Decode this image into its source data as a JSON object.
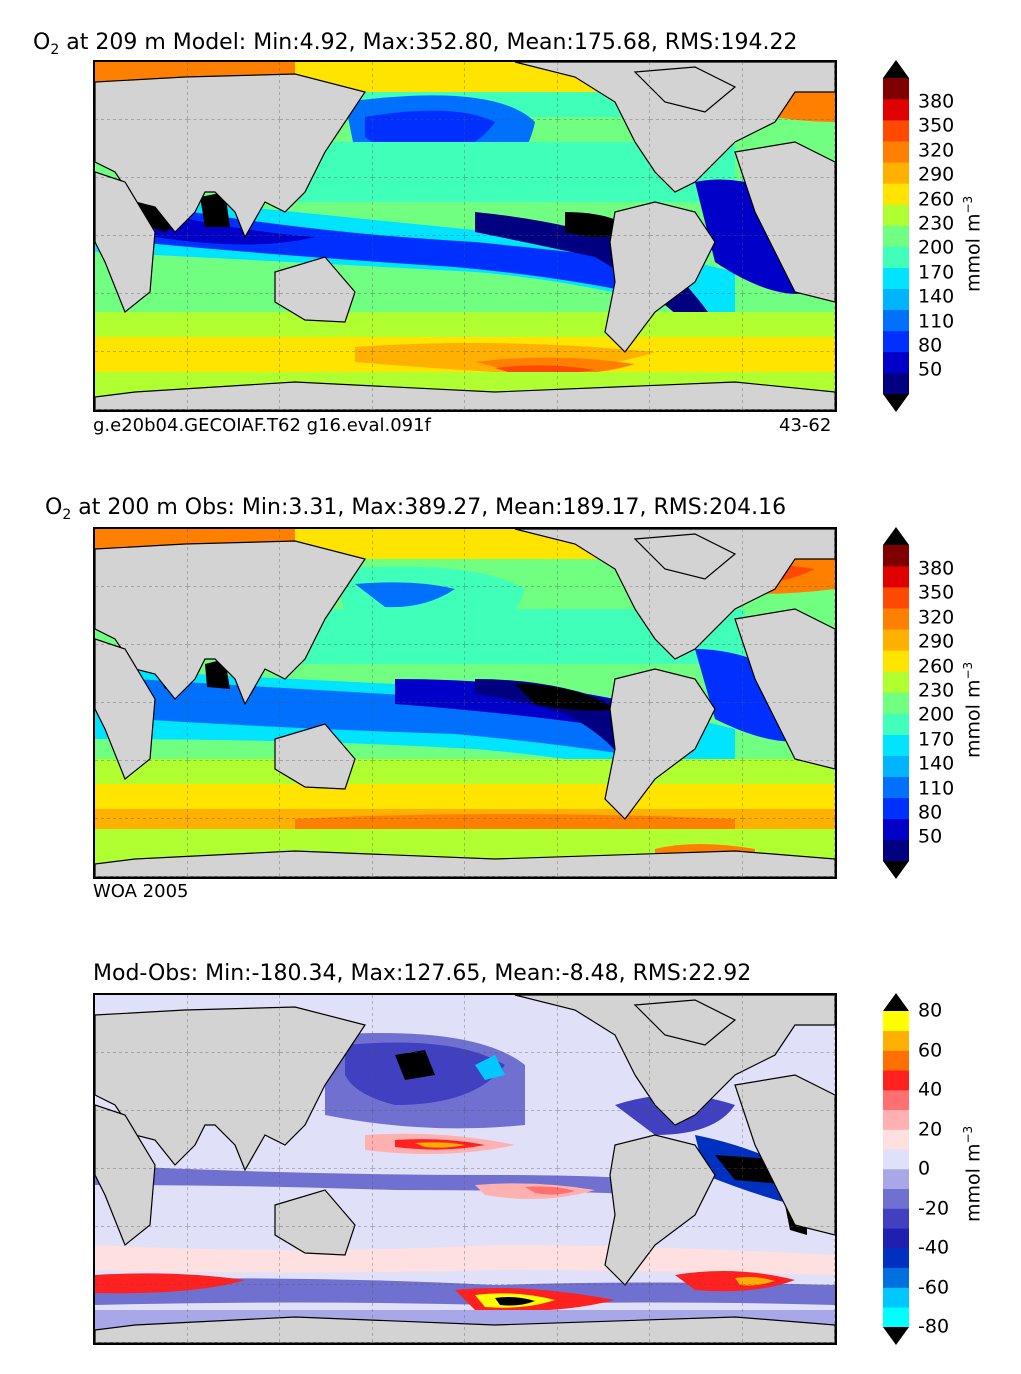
{
  "colors": {
    "land": "#d3d3d3",
    "absolute_scale": [
      "#000080",
      "#0000c8",
      "#0030ff",
      "#0070ff",
      "#00b4ff",
      "#00e4ff",
      "#40ffb8",
      "#70ff80",
      "#b0ff30",
      "#ffe400",
      "#ffb000",
      "#ff8000",
      "#ff4800",
      "#e00000",
      "#800000"
    ],
    "difference_scale": [
      "#00ffff",
      "#00c8ff",
      "#0070e0",
      "#0030c0",
      "#2020b0",
      "#4040c0",
      "#7070d0",
      "#a8a8e8",
      "#e0e0f8",
      "#ffe0e0",
      "#ffb0b0",
      "#ff7070",
      "#ff2020",
      "#ff7000",
      "#ffb000",
      "#ffff00"
    ]
  },
  "panels": [
    {
      "id": "model",
      "title_prefix": "O",
      "title_sub": "2",
      "title_rest": " at 209 m Model: Min:4.92, Max:352.80, Mean:175.68, RMS:194.22",
      "caption_left": "g.e20b04.GECOIAF.T62 g16.eval.091f",
      "caption_right": "43-62",
      "colorbar": {
        "ticks": [
          "380",
          "350",
          "320",
          "290",
          "260",
          "230",
          "200",
          "170",
          "140",
          "110",
          "80",
          "50"
        ],
        "unit_base": "mmol m",
        "unit_exp": "−3"
      }
    },
    {
      "id": "obs",
      "title_prefix": "O",
      "title_sub": "2",
      "title_rest": " at 200 m Obs: Min:3.31, Max:389.27, Mean:189.17, RMS:204.16",
      "caption_left": "WOA 2005",
      "caption_right": "",
      "colorbar": {
        "ticks": [
          "380",
          "350",
          "320",
          "290",
          "260",
          "230",
          "200",
          "170",
          "140",
          "110",
          "80",
          "50"
        ],
        "unit_base": "mmol m",
        "unit_exp": "−3"
      }
    },
    {
      "id": "diff",
      "title_prefix": "",
      "title_sub": "",
      "title_rest": "Mod-Obs: Min:-180.34, Max:127.65, Mean:-8.48, RMS:22.92",
      "caption_left": "",
      "caption_right": "",
      "colorbar": {
        "ticks": [
          "80",
          "60",
          "40",
          "20",
          "0",
          "-20",
          "-40",
          "-60",
          "-80"
        ],
        "unit_base": "mmol m",
        "unit_exp": "−3"
      }
    }
  ]
}
